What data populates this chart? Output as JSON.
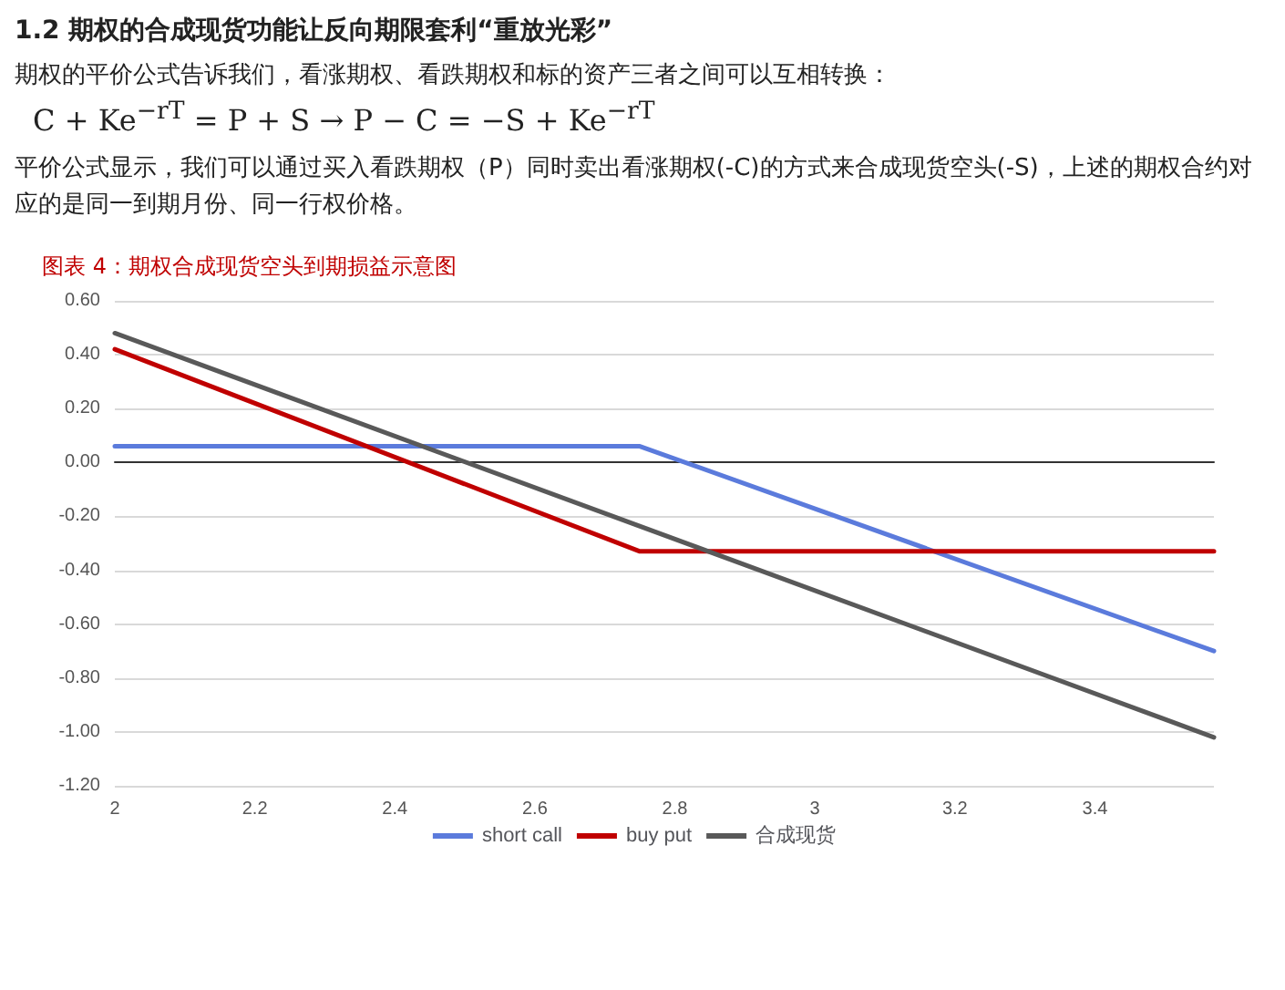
{
  "chart_data": {
    "type": "line",
    "title": "1.2 期权的合成现货功能让反向期限套利“重放光彩”",
    "subtitle": "期权的平价公式告诉我们，看涨期权、看跌期权和标的资产三者之间可以互相转换：",
    "annotations": [
      "C + Ke$^{−rT}$ = P + S  →  P − C = −S + Ke$^{−rT}$",
      "平价公式显示，我们可以通过买入看跌期权（P）同时卖出看涨期权(-C)的方式来合成现货空头(-S)，上述的期权合约对应的是同一到期月份、同一行权价格。",
      "图表 4：期权合成现货空头到期损益示意图"
    ],
    "series": [
      {
        "name": "short call",
        "color": "#5b7bdc",
        "x": [
          2,
          2.75,
          3.57
        ],
        "values": [
          0.06,
          0.06,
          -0.7
        ]
      },
      {
        "name": "buy put",
        "color": "#c00000",
        "x": [
          2,
          2.75,
          3.57
        ],
        "values": [
          0.42,
          -0.33,
          -0.33
        ]
      },
      {
        "name": "合成现货",
        "color": "#595959",
        "x": [
          2,
          3.57
        ],
        "values": [
          0.48,
          -1.02
        ]
      }
    ],
    "xlim": [
      2,
      3.57
    ],
    "xticks": [
      2,
      2.2,
      2.4,
      2.6,
      2.8,
      3,
      3.2,
      3.4
    ],
    "ylim": [
      -1.2,
      0.6
    ],
    "yticks": [
      {
        "value": 0.6,
        "label": "0.60"
      },
      {
        "value": 0.4,
        "label": "0.40"
      },
      {
        "value": 0.2,
        "label": "0.20"
      },
      {
        "value": 0,
        "label": "0.00"
      },
      {
        "value": -0.2,
        "label": "-0.20"
      },
      {
        "value": -0.4,
        "label": "-0.40"
      },
      {
        "value": -0.6,
        "label": "-0.60"
      },
      {
        "value": -0.8,
        "label": "-0.80"
      },
      {
        "value": -1,
        "label": "-1.00"
      },
      {
        "value": -1.2,
        "label": "-1.20"
      }
    ],
    "grid": "y",
    "legend": "bottom",
    "marker": "none",
    "line_style": "solid"
  }
}
